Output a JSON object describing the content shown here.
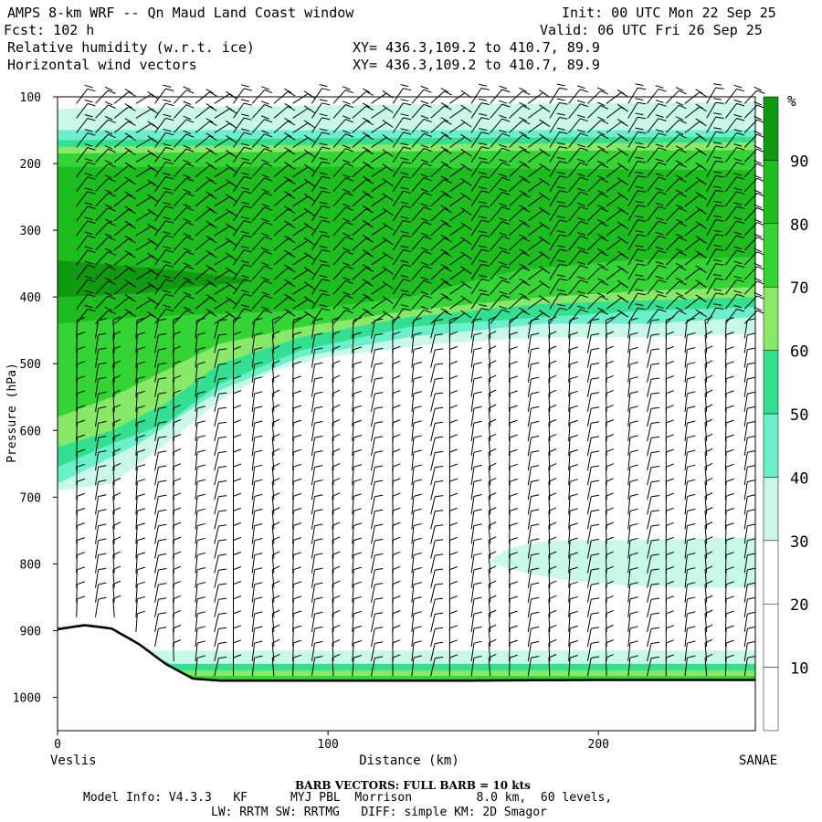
{
  "header": {
    "title": "AMPS 8-km WRF -- Qn Maud Land Coast window",
    "init": "Init: 00 UTC Mon 22 Sep 25",
    "fcst": "Fcst: 102 h",
    "valid": "Valid: 06 UTC Fri 26 Sep 25",
    "var1": "Relative humidity (w.r.t. ice)",
    "var1_xy": "XY= 436.3,109.2 to 410.7, 89.9",
    "var2": "Horizontal wind vectors",
    "var2_xy": "XY= 436.3,109.2 to 410.7, 89.9"
  },
  "footer": {
    "barb_note": "BARB VECTORS: FULL BARB = 10 kts",
    "model_info_1": "Model Info: V4.3.3   KF      MYJ PBL  Morrison         8.0 km,  60 levels,",
    "model_info_2": "LW: RRTM SW: RRTMG   DIFF: simple KM: 2D Smagor"
  },
  "chart_data": {
    "type": "heatmap",
    "title": "Relative humidity (w.r.t. ice) and horizontal wind vectors cross-section",
    "xlabel": "Distance (km)",
    "ylabel": "Pressure (hPa)",
    "xlim": [
      0,
      258
    ],
    "ylim": [
      1050,
      100
    ],
    "x_ticks": [
      0,
      100,
      200
    ],
    "x_tick_labels": [
      "0",
      "100",
      "200"
    ],
    "y_ticks": [
      100,
      200,
      300,
      400,
      500,
      600,
      700,
      800,
      900,
      1000
    ],
    "y_tick_labels": [
      "100",
      "200",
      "300",
      "400",
      "500",
      "600",
      "700",
      "800",
      "900",
      "1000"
    ],
    "left_endpoint": "Veslis",
    "right_endpoint": "SANAE",
    "colorbar": {
      "unit": "%",
      "ticks": [
        "10",
        "20",
        "30",
        "40",
        "50",
        "60",
        "70",
        "80",
        "90"
      ],
      "levels": [
        0,
        10,
        20,
        30,
        40,
        50,
        60,
        70,
        80,
        90,
        100
      ],
      "colors": [
        "#ffffff",
        "#ffffff",
        "#ffffff",
        "#c8f8e8",
        "#6cf0cc",
        "#33e08f",
        "#88e868",
        "#33d433",
        "#1ebd1e",
        "#109a10"
      ]
    },
    "rh_bands": [
      {
        "level": 30,
        "top": [
          [
            0,
            118
          ],
          [
            60,
            115
          ],
          [
            120,
            112
          ],
          [
            180,
            110
          ],
          [
            258,
            108
          ]
        ],
        "bottom": [
          [
            0,
            690
          ],
          [
            20,
            680
          ],
          [
            40,
            620
          ],
          [
            60,
            555
          ],
          [
            80,
            510
          ],
          [
            100,
            490
          ],
          [
            140,
            470
          ],
          [
            180,
            460
          ],
          [
            220,
            460
          ],
          [
            258,
            455
          ]
        ]
      },
      {
        "level": 40,
        "top": [
          [
            0,
            150
          ],
          [
            100,
            150
          ],
          [
            258,
            150
          ]
        ],
        "bottom": [
          [
            0,
            680
          ],
          [
            30,
            620
          ],
          [
            60,
            540
          ],
          [
            90,
            490
          ],
          [
            130,
            460
          ],
          [
            180,
            440
          ],
          [
            220,
            440
          ],
          [
            258,
            430
          ]
        ]
      },
      {
        "level": 50,
        "top": [
          [
            0,
            165
          ],
          [
            100,
            162
          ],
          [
            258,
            160
          ]
        ],
        "bottom": [
          [
            0,
            655
          ],
          [
            20,
            620
          ],
          [
            40,
            590
          ],
          [
            60,
            530
          ],
          [
            90,
            480
          ],
          [
            130,
            445
          ],
          [
            180,
            430
          ],
          [
            220,
            420
          ],
          [
            258,
            415
          ]
        ]
      },
      {
        "level": 60,
        "top": [
          [
            0,
            175
          ],
          [
            100,
            172
          ],
          [
            258,
            168
          ]
        ],
        "bottom": [
          [
            0,
            625
          ],
          [
            20,
            600
          ],
          [
            40,
            560
          ],
          [
            60,
            500
          ],
          [
            90,
            460
          ],
          [
            130,
            430
          ],
          [
            180,
            410
          ],
          [
            220,
            405
          ],
          [
            258,
            400
          ]
        ]
      },
      {
        "level": 70,
        "top": [
          [
            0,
            185
          ],
          [
            100,
            182
          ],
          [
            258,
            180
          ]
        ],
        "bottom": [
          [
            0,
            580
          ],
          [
            20,
            550
          ],
          [
            40,
            510
          ],
          [
            60,
            470
          ],
          [
            90,
            445
          ],
          [
            130,
            420
          ],
          [
            180,
            400
          ],
          [
            220,
            390
          ],
          [
            258,
            385
          ]
        ]
      },
      {
        "level": 80,
        "top": [
          [
            0,
            205
          ],
          [
            100,
            205
          ],
          [
            258,
            210
          ]
        ],
        "bottom": [
          [
            0,
            440
          ],
          [
            30,
            430
          ],
          [
            60,
            425
          ],
          [
            90,
            420
          ],
          [
            130,
            400
          ],
          [
            170,
            360
          ],
          [
            210,
            345
          ],
          [
            258,
            340
          ]
        ]
      },
      {
        "level": 90,
        "top": [
          [
            0,
            345
          ],
          [
            30,
            355
          ],
          [
            48,
            362
          ],
          [
            70,
            372
          ]
        ],
        "bottom": [
          [
            70,
            378
          ],
          [
            48,
            385
          ],
          [
            30,
            395
          ],
          [
            0,
            400
          ]
        ]
      }
    ],
    "low_cloud_band": {
      "level": 30,
      "pressure_range": [
        760,
        835
      ],
      "x_range": [
        160,
        258
      ]
    },
    "boundary_layer_bands": [
      {
        "level": 30,
        "pressure_top": 930
      },
      {
        "level": 50,
        "pressure_top": 950
      },
      {
        "level": 60,
        "pressure_top": 960
      },
      {
        "level": 70,
        "pressure_top": 968
      },
      {
        "level": 80,
        "pressure_top": 975
      }
    ],
    "terrain_pressure": [
      [
        0,
        898
      ],
      [
        10,
        892
      ],
      [
        20,
        897
      ],
      [
        30,
        920
      ],
      [
        40,
        950
      ],
      [
        50,
        972
      ],
      [
        60,
        975
      ],
      [
        100,
        975
      ],
      [
        150,
        975
      ],
      [
        200,
        974
      ],
      [
        258,
        974
      ]
    ],
    "wind_barb_columns_km": [
      7,
      14,
      21,
      29,
      36,
      43,
      51,
      58,
      65,
      72,
      80,
      87,
      94,
      102,
      109,
      116,
      124,
      131,
      138,
      145,
      153,
      160,
      167,
      174,
      182,
      189,
      196,
      203,
      211,
      218,
      225,
      232,
      240,
      247,
      254
    ]
  }
}
